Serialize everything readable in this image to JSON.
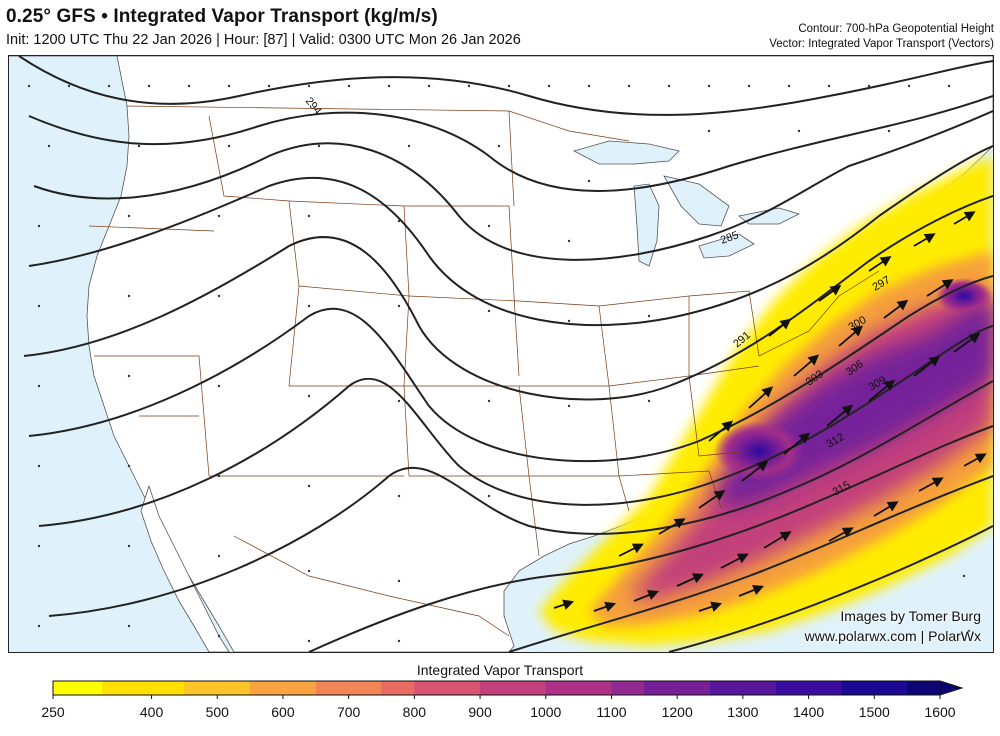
{
  "header": {
    "title": "0.25° GFS • Integrated Vapor Transport (kg/m/s)",
    "subtitle": "Init: 1200 UTC Thu 22 Jan 2026 | Hour: [87] | Valid: 0300 UTC Mon 26 Jan 2026",
    "contour_note": "Contour: 700-hPa Geopotential Height",
    "vector_note": "Vector: Integrated Vapor Transport (Vectors)"
  },
  "credits": {
    "line1": "Images by Tomer Burg",
    "line2": "www.polarwx.com | PolarWx"
  },
  "contour_labels": [
    "294",
    "285",
    "291",
    "297",
    "300",
    "303",
    "306",
    "309",
    "312",
    "315"
  ],
  "colorbar": {
    "title": "Integrated Vapor Transport",
    "ticks": [
      "250",
      "400",
      "500",
      "600",
      "700",
      "800",
      "900",
      "1000",
      "1100",
      "1200",
      "1300",
      "1400",
      "1500",
      "1600"
    ],
    "colors": [
      "#ffff00",
      "#ffe000",
      "#fdc42a",
      "#f9a341",
      "#f28555",
      "#e86c63",
      "#d85470",
      "#c4407c",
      "#ad3187",
      "#932a91",
      "#771f97",
      "#58169c",
      "#3a0d9f",
      "#1c0893",
      "#0d0474"
    ]
  },
  "colors": {
    "ocean": "#dff2fb",
    "land": "#ffffff",
    "contour": "#222222",
    "border": "#7a3b16"
  }
}
